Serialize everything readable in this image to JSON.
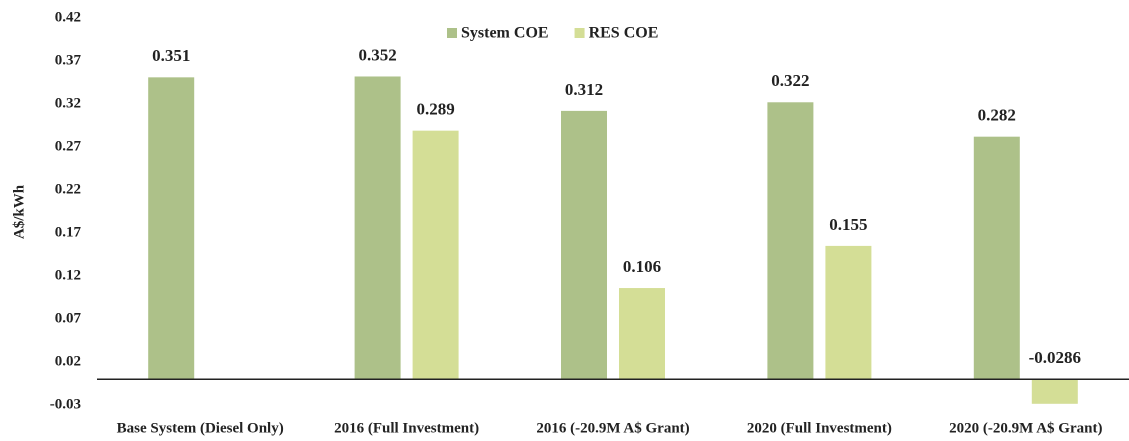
{
  "chart_data": {
    "type": "bar",
    "categories": [
      "Base System (Diesel Only)",
      "2016 (Full Investment)",
      "2016 (-20.9M A$ Grant)",
      "2020 (Full Investment)",
      "2020 (-20.9M A$ Grant)"
    ],
    "series": [
      {
        "name": "System COE",
        "color": "#adc189",
        "values": [
          0.351,
          0.352,
          0.312,
          0.322,
          0.282
        ]
      },
      {
        "name": "RES COE",
        "color": "#d4de96",
        "values": [
          null,
          0.289,
          0.106,
          0.155,
          -0.0286
        ]
      }
    ],
    "y_label": "A$/kWh",
    "ylim": [
      -0.03,
      0.42
    ],
    "yticks": [
      -0.03,
      0.02,
      0.07,
      0.12,
      0.17,
      0.22,
      0.27,
      0.32,
      0.37,
      0.42
    ],
    "grid": false,
    "legend": "top"
  }
}
